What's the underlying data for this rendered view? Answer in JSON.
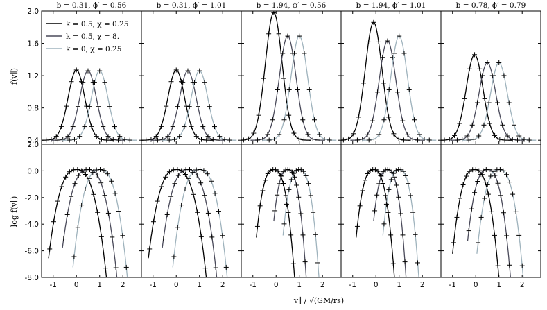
{
  "figure": {
    "xlabel": "v∥ / √(GM/rs)",
    "ylabel_top": "f(v∥)",
    "ylabel_bottom": "log f(v∥)"
  },
  "legend": [
    {
      "label": "k = 0.5, χ = 0.25",
      "color": "#000000"
    },
    {
      "label": "k = 0.5, χ = 8.",
      "color": "#4a4a5a"
    },
    {
      "label": "k = 0, χ = 0.25",
      "color": "#9fb3bd"
    }
  ],
  "chart_data": {
    "type": "line",
    "panels": [
      {
        "title": "b = 0.31, ϕ′ = 0.56",
        "b": 0.31,
        "phi": 0.56
      },
      {
        "title": "b = 0.31, ϕ′ = 1.01",
        "b": 0.31,
        "phi": 1.01
      },
      {
        "title": "b = 1.94, ϕ′ = 0.56",
        "b": 1.94,
        "phi": 0.56
      },
      {
        "title": "b = 1.94, ϕ′ = 1.01",
        "b": 1.94,
        "phi": 1.01
      },
      {
        "title": "b = 0.78, ϕ′ = 0.79",
        "b": 0.78,
        "phi": 0.79
      }
    ],
    "xlim": [
      -1.5,
      2.8
    ],
    "xticks": [
      -1,
      0,
      1,
      2
    ],
    "top": {
      "ylim": [
        0.35,
        2.0
      ],
      "yticks": [
        "0.4",
        "0.8",
        "1.2",
        "1.6",
        "2.0"
      ],
      "series": [
        {
          "name": "k = 0.5, χ = 0.25",
          "peaks": [
            [
              0.0,
              1.27
            ],
            [
              0.0,
              1.27
            ],
            [
              -0.1,
              1.98
            ],
            [
              -0.1,
              1.86
            ],
            [
              -0.05,
              1.46
            ]
          ]
        },
        {
          "name": "k = 0.5, χ = 8.",
          "peaks": [
            [
              0.5,
              1.26
            ],
            [
              0.5,
              1.26
            ],
            [
              0.5,
              1.69
            ],
            [
              0.5,
              1.63
            ],
            [
              0.5,
              1.36
            ]
          ]
        },
        {
          "name": "k = 0, χ = 0.25",
          "peaks": [
            [
              1.0,
              1.26
            ],
            [
              1.0,
              1.26
            ],
            [
              1.0,
              1.69
            ],
            [
              1.0,
              1.69
            ],
            [
              1.0,
              1.36
            ]
          ]
        }
      ],
      "sigma": [
        [
          0.38,
          0.38,
          0.38,
          0.38,
          0.38
        ],
        [
          0.38,
          0.38,
          0.38,
          0.38,
          0.38
        ]
      ]
    },
    "bottom": {
      "ylim": [
        -8.0,
        2.0
      ],
      "yticks": [
        "-8.0",
        "-6.0",
        "-4.0",
        "-2.0",
        "0.0",
        "2.0"
      ],
      "series": [
        {
          "name": "k = 0.5, χ = 0.25",
          "center": [
            0.0,
            0.0,
            -0.1,
            -0.1,
            -0.05
          ],
          "edges": [
            [
              -1.2,
              1.3
            ],
            [
              -1.2,
              1.3
            ],
            [
              -0.85,
              0.8
            ],
            [
              -0.85,
              0.8
            ],
            [
              -1.0,
              1.0
            ]
          ]
        },
        {
          "name": "k = 0.5, χ = 8.",
          "center": [
            0.5,
            0.5,
            0.5,
            0.5,
            0.5
          ],
          "edges": [
            [
              -0.6,
              1.75
            ],
            [
              -0.6,
              1.75
            ],
            [
              -0.1,
              1.3
            ],
            [
              -0.1,
              1.3
            ],
            [
              -0.35,
              1.5
            ]
          ]
        },
        {
          "name": "k = 0, χ = 0.25",
          "center": [
            1.0,
            1.0,
            1.0,
            1.0,
            1.0
          ],
          "edges": [
            [
              -0.15,
              2.2
            ],
            [
              -0.15,
              2.2
            ],
            [
              0.3,
              1.85
            ],
            [
              0.3,
              1.85
            ],
            [
              0.05,
              2.05
            ]
          ]
        }
      ]
    }
  }
}
